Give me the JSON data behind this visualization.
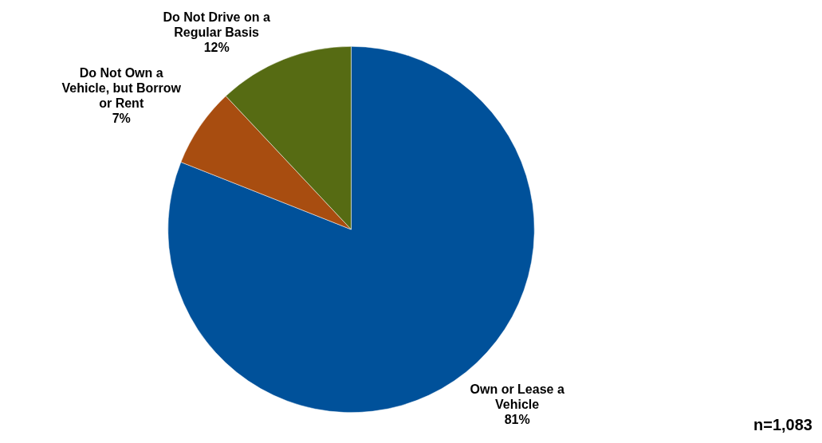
{
  "chart_data": {
    "type": "pie",
    "categories": [
      "Own or Lease a Vehicle",
      "Do Not Own a Vehicle, but Borrow or Rent",
      "Do Not Drive on a Regular Basis"
    ],
    "values": [
      81,
      7,
      12
    ],
    "colors": [
      "#00519a",
      "#a84d10",
      "#566b13"
    ],
    "value_labels": [
      "81%",
      "7%",
      "12%"
    ],
    "legend": false,
    "annotations": [
      "n=1,083"
    ]
  }
}
